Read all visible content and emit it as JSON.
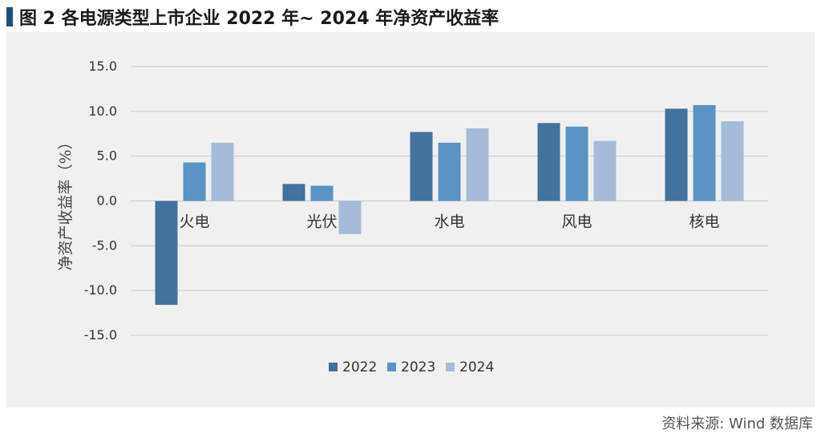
{
  "figure": {
    "title": "图 2  各电源类型上市企业 2022 年~ 2024 年净资产收益率",
    "source": "资料来源: Wind 数据库"
  },
  "chart_data": {
    "type": "bar",
    "categories": [
      "火电",
      "光伏",
      "水电",
      "风电",
      "核电"
    ],
    "series": [
      {
        "name": "2022",
        "color": "#43729e",
        "values": [
          -11.6,
          1.9,
          7.7,
          8.7,
          10.3
        ]
      },
      {
        "name": "2023",
        "color": "#5b93c7",
        "values": [
          4.3,
          1.7,
          6.5,
          8.3,
          10.7
        ]
      },
      {
        "name": "2024",
        "color": "#a4bcd9",
        "values": [
          6.5,
          -3.7,
          8.1,
          6.7,
          8.9
        ]
      }
    ],
    "title": "",
    "xlabel": "",
    "ylabel": "净资产收益率（%）",
    "ylim": [
      -15,
      15
    ],
    "yticks": [
      15,
      10,
      5,
      0,
      -5,
      -10,
      -15
    ],
    "ytick_labels": [
      "15.0",
      "10.0",
      "5.0",
      "0.0",
      "-5.0",
      "-10.0",
      "-15.0"
    ],
    "grid": true,
    "legend_position": "bottom-center"
  }
}
